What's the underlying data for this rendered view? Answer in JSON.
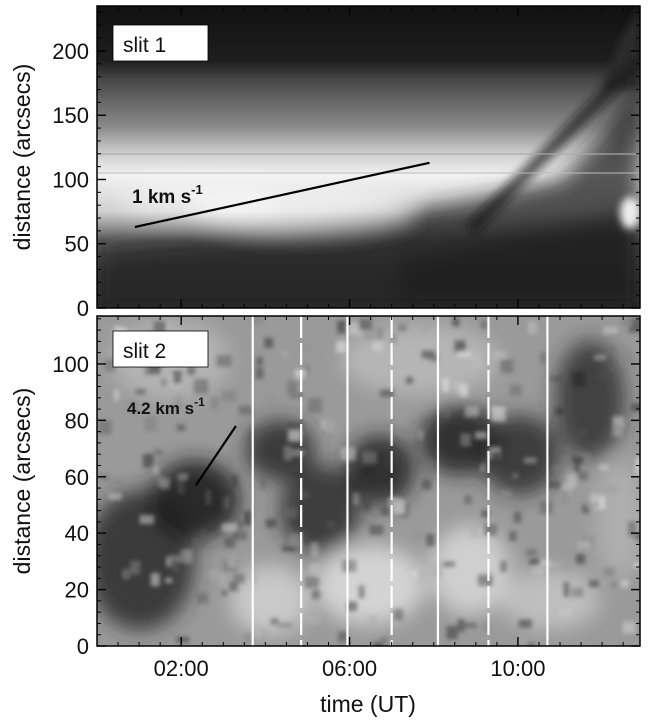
{
  "chart_data": [
    {
      "type": "heatmap",
      "panel_label": "slit 1",
      "xlabel": "",
      "ylabel": "distance (arcsecs)",
      "x_unit": "hours UT",
      "xlim": [
        0.0,
        12.9
      ],
      "ylim": [
        0,
        235
      ],
      "yticks": [
        0,
        50,
        100,
        150,
        200
      ],
      "grid": false,
      "annotations": [
        {
          "text_main": "1 km s",
          "text_sup": "-1",
          "line": {
            "x": [
              0.9,
              7.9
            ],
            "y": [
              63,
              113
            ]
          }
        }
      ]
    },
    {
      "type": "heatmap",
      "panel_label": "slit 2",
      "xlabel": "time (UT)",
      "ylabel": "distance (arcsecs)",
      "x_unit": "hours UT",
      "xlim": [
        0.0,
        12.9
      ],
      "ylim": [
        0,
        117
      ],
      "xticks": [
        "02:00",
        "06:00",
        "10:00"
      ],
      "xtick_values": [
        2,
        6,
        10
      ],
      "yticks": [
        0,
        20,
        40,
        60,
        80,
        100
      ],
      "grid": false,
      "annotations": [
        {
          "text_main": "4.2 km s",
          "text_sup": "-1",
          "line": {
            "x": [
              2.35,
              3.3
            ],
            "y": [
              57,
              78
            ]
          }
        }
      ],
      "vertical_markers": [
        {
          "x": 3.7,
          "style": "solid"
        },
        {
          "x": 4.85,
          "style": "dashed"
        },
        {
          "x": 5.95,
          "style": "solid"
        },
        {
          "x": 7.0,
          "style": "dashed"
        },
        {
          "x": 8.1,
          "style": "solid"
        },
        {
          "x": 9.3,
          "style": "dashed"
        },
        {
          "x": 10.7,
          "style": "solid"
        }
      ]
    }
  ]
}
